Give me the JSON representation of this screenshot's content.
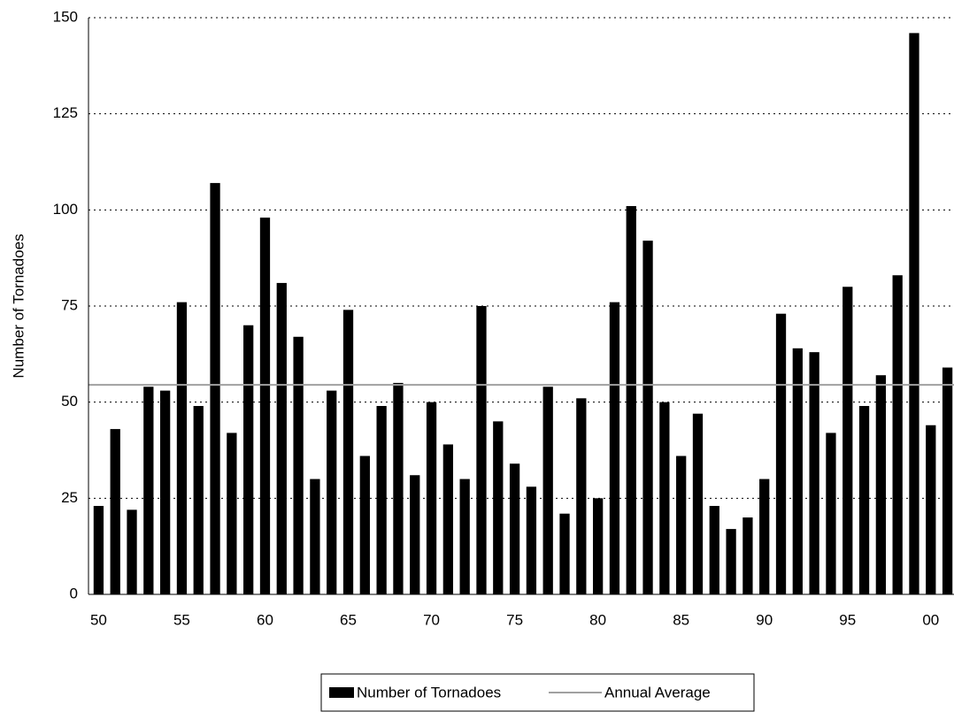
{
  "chart_data": {
    "type": "bar",
    "ylabel": "Number of Tornadoes",
    "categories": [
      "50",
      null,
      null,
      null,
      null,
      "55",
      null,
      null,
      null,
      null,
      "60",
      null,
      null,
      null,
      null,
      "65",
      null,
      null,
      null,
      null,
      "70",
      null,
      null,
      null,
      null,
      "75",
      null,
      null,
      null,
      null,
      "80",
      null,
      null,
      null,
      null,
      "85",
      null,
      null,
      null,
      null,
      "90",
      null,
      null,
      null,
      null,
      "95",
      null,
      null,
      null,
      null,
      "00",
      null
    ],
    "series": [
      {
        "name": "Number of Tornadoes",
        "color": "#000000",
        "values": [
          23,
          43,
          22,
          54,
          53,
          76,
          49,
          107,
          42,
          70,
          98,
          81,
          67,
          30,
          53,
          74,
          36,
          49,
          55,
          31,
          50,
          39,
          30,
          75,
          45,
          34,
          28,
          54,
          21,
          51,
          25,
          76,
          101,
          92,
          50,
          36,
          47,
          23,
          17,
          20,
          30,
          73,
          64,
          63,
          42,
          80,
          49,
          57,
          83,
          146,
          44,
          59
        ]
      }
    ],
    "average": {
      "name": "Annual Average",
      "color": "#a0a0a0",
      "value": 54.5
    },
    "ylim": [
      0,
      150
    ],
    "yticks": [
      0,
      25,
      50,
      75,
      100,
      125,
      150
    ],
    "grid": true
  }
}
